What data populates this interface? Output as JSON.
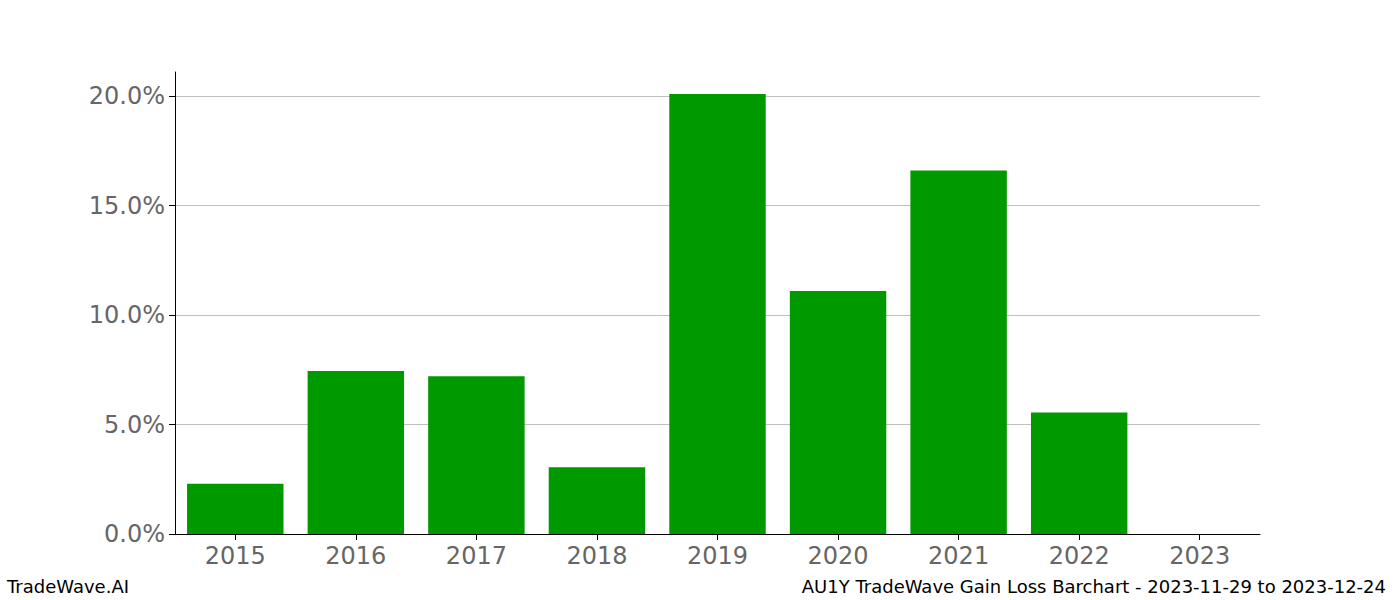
{
  "chart_data": {
    "type": "bar",
    "title": "AU1Y TradeWave Gain Loss Barchart - 2023-11-29 to 2023-12-24",
    "caption": "TradeWave.AI",
    "categories": [
      "2015",
      "2016",
      "2017",
      "2018",
      "2019",
      "2020",
      "2021",
      "2022",
      "2023"
    ],
    "values": [
      2.3,
      7.45,
      7.2,
      3.05,
      20.1,
      11.1,
      16.6,
      5.55,
      0
    ],
    "color": "#009900",
    "ylim": [
      0,
      21.1
    ],
    "yticks": [
      {
        "value": 0,
        "label": "0.0%"
      },
      {
        "value": 5,
        "label": "5.0%"
      },
      {
        "value": 10,
        "label": "10.0%"
      },
      {
        "value": 15,
        "label": "15.0%"
      },
      {
        "value": 20,
        "label": "20.0%"
      }
    ],
    "grid": true
  }
}
